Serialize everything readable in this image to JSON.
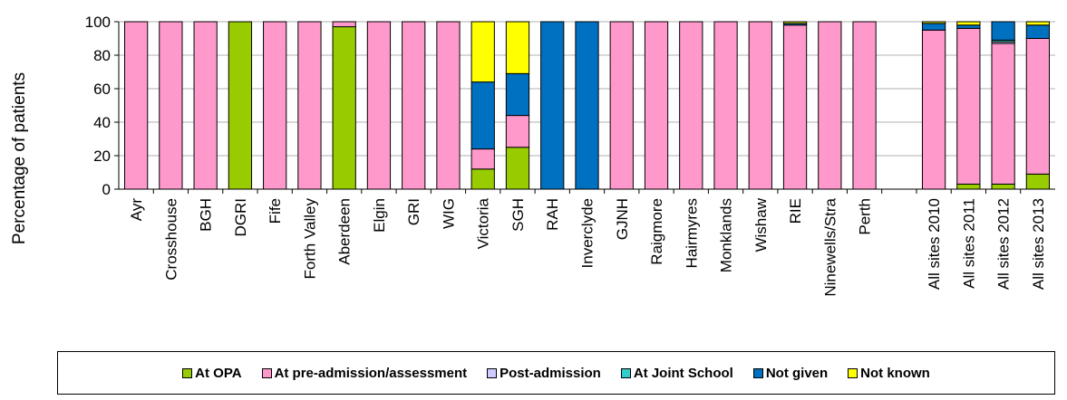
{
  "chart_data": {
    "type": "bar",
    "stacked": true,
    "ylabel": "Percentage of patients",
    "xlabel": "",
    "ylim": [
      0,
      100
    ],
    "yticks": [
      0,
      20,
      40,
      60,
      80,
      100
    ],
    "grid": "horizontal",
    "legend_position": "bottom",
    "categories": [
      "Ayr",
      "Crosshouse",
      "BGH",
      "DGRI",
      "Fife",
      "Forth Valley",
      "Aberdeen",
      "Elgin",
      "GRI",
      "WIG",
      "Victoria",
      "SGH",
      "RAH",
      "Inverclyde",
      "GJNH",
      "Raigmore",
      "Hairmyres",
      "Monklands",
      "Wishaw",
      "RIE",
      "Ninewells/Stra",
      "Perth",
      "",
      "All sites 2010",
      "All sites 2011",
      "All sites 2012",
      "All sites 2013"
    ],
    "series": [
      {
        "name": "At OPA",
        "color": "#99CC00",
        "values": [
          0,
          0,
          0,
          100,
          0,
          0,
          97,
          0,
          0,
          0,
          12,
          25,
          0,
          0,
          0,
          0,
          0,
          0,
          0,
          0,
          0,
          0,
          0,
          0,
          3,
          3,
          9
        ]
      },
      {
        "name": "At pre-admission/assessment",
        "color": "#FF99CC",
        "values": [
          100,
          100,
          100,
          0,
          100,
          100,
          3,
          100,
          100,
          100,
          12,
          19,
          0,
          0,
          100,
          100,
          100,
          100,
          100,
          98,
          100,
          100,
          0,
          95,
          93,
          84,
          81
        ]
      },
      {
        "name": "Post-admission",
        "color": "#CCCCFF",
        "values": [
          0,
          0,
          0,
          0,
          0,
          0,
          0,
          0,
          0,
          0,
          0,
          0,
          0,
          0,
          0,
          0,
          0,
          0,
          0,
          0,
          0,
          0,
          0,
          0,
          0,
          1,
          0
        ]
      },
      {
        "name": "At Joint School",
        "color": "#33CCCC",
        "values": [
          0,
          0,
          0,
          0,
          0,
          0,
          0,
          0,
          0,
          0,
          0,
          0,
          0,
          0,
          0,
          0,
          0,
          0,
          0,
          0,
          0,
          0,
          0,
          0,
          0,
          1,
          0
        ]
      },
      {
        "name": "Not given",
        "color": "#0070C0",
        "values": [
          0,
          0,
          0,
          0,
          0,
          0,
          0,
          0,
          0,
          0,
          40,
          25,
          100,
          100,
          0,
          0,
          0,
          0,
          0,
          1,
          0,
          0,
          0,
          4,
          2,
          11,
          8
        ]
      },
      {
        "name": "Not known",
        "color": "#FFFF00",
        "values": [
          0,
          0,
          0,
          0,
          0,
          0,
          0,
          0,
          0,
          0,
          36,
          31,
          0,
          0,
          0,
          0,
          0,
          0,
          0,
          1,
          0,
          0,
          0,
          1,
          2,
          0,
          2
        ]
      }
    ]
  }
}
